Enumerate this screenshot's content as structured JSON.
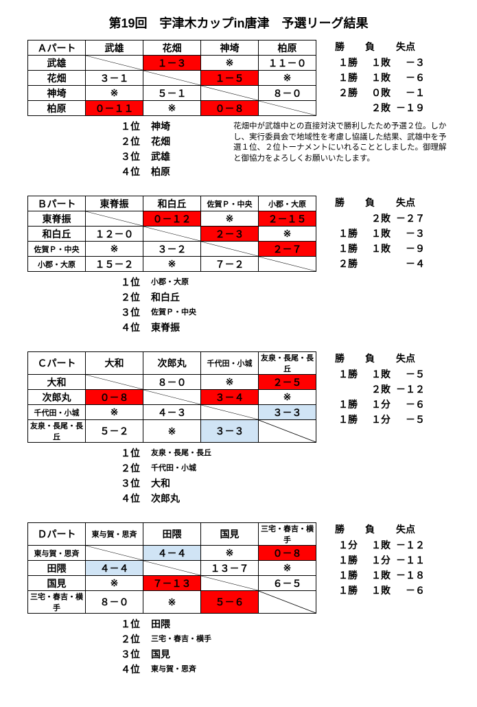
{
  "title": "第19回　宇津木カップin唐津　予選リーグ結果",
  "stats_header": {
    "win": "勝",
    "lose": "負",
    "pts": "失点"
  },
  "note": "花畑中が武雄中との直接対決で勝利したため予選２位。しかし、実行委員会で地域性を考慮し協議した結果、武雄中を予選１位、２位トーナメントにいれることとしました。御理解と御協力をよろしくお願いいたします。",
  "groups": [
    {
      "label": "Ａパート",
      "teams": [
        "武雄",
        "花畑",
        "神埼",
        "柏原"
      ],
      "teams_small": [
        false,
        false,
        false,
        false
      ],
      "cells": [
        [
          "X",
          {
            "v": "１－３",
            "c": "red"
          },
          {
            "v": "※",
            "c": ""
          },
          {
            "v": "１１－０",
            "c": ""
          }
        ],
        [
          {
            "v": "３－１",
            "c": ""
          },
          "X",
          {
            "v": "１－５",
            "c": "red"
          },
          {
            "v": "※",
            "c": ""
          }
        ],
        [
          {
            "v": "※",
            "c": ""
          },
          {
            "v": "５－１",
            "c": ""
          },
          "X",
          {
            "v": "８－０",
            "c": ""
          }
        ],
        [
          {
            "v": "０－１１",
            "c": "red"
          },
          {
            "v": "※",
            "c": ""
          },
          {
            "v": "０－８",
            "c": "red"
          },
          "X"
        ]
      ],
      "stats": [
        {
          "win": "１勝",
          "lose": "１敗",
          "pts": "－３"
        },
        {
          "win": "１勝",
          "lose": "１敗",
          "pts": "－６"
        },
        {
          "win": "２勝",
          "lose": "０敗",
          "pts": "－１"
        },
        {
          "win": "",
          "lose": "２敗",
          "pts": "－１９"
        }
      ],
      "rank": [
        {
          "pos": "１位",
          "team": "神埼"
        },
        {
          "pos": "２位",
          "team": "花畑"
        },
        {
          "pos": "３位",
          "team": "武雄"
        },
        {
          "pos": "４位",
          "team": "柏原"
        }
      ],
      "rank_small": [
        false,
        false,
        false,
        false
      ],
      "has_note": true
    },
    {
      "label": "Ｂパート",
      "teams": [
        "東脊振",
        "和白丘",
        "佐賀Ｐ・中央",
        "小郡・大原"
      ],
      "teams_small": [
        false,
        false,
        true,
        true
      ],
      "cells": [
        [
          "X",
          {
            "v": "０－１２",
            "c": "red"
          },
          {
            "v": "※",
            "c": ""
          },
          {
            "v": "２－１５",
            "c": "red"
          }
        ],
        [
          {
            "v": "１２－０",
            "c": ""
          },
          "X",
          {
            "v": "２－３",
            "c": "red"
          },
          {
            "v": "※",
            "c": ""
          }
        ],
        [
          {
            "v": "※",
            "c": ""
          },
          {
            "v": "３－２",
            "c": ""
          },
          "X",
          {
            "v": "２－７",
            "c": "red"
          }
        ],
        [
          {
            "v": "１５－２",
            "c": ""
          },
          {
            "v": "※",
            "c": ""
          },
          {
            "v": "７－２",
            "c": ""
          },
          "X"
        ]
      ],
      "stats": [
        {
          "win": "",
          "lose": "２敗",
          "pts": "－２７"
        },
        {
          "win": "１勝",
          "lose": "１敗",
          "pts": "－３"
        },
        {
          "win": "１勝",
          "lose": "１敗",
          "pts": "－９"
        },
        {
          "win": "２勝",
          "lose": "",
          "pts": "－４"
        }
      ],
      "rank": [
        {
          "pos": "１位",
          "team": "小郡・大原"
        },
        {
          "pos": "２位",
          "team": "和白丘"
        },
        {
          "pos": "３位",
          "team": "佐賀Ｐ・中央"
        },
        {
          "pos": "４位",
          "team": "東脊振"
        }
      ],
      "rank_small": [
        true,
        false,
        true,
        false
      ],
      "has_note": false
    },
    {
      "label": "Ｃパート",
      "teams": [
        "大和",
        "次郎丸",
        "千代田・小城",
        "友泉・長尾・長丘"
      ],
      "teams_small": [
        false,
        false,
        true,
        true
      ],
      "cells": [
        [
          "X",
          {
            "v": "８－０",
            "c": ""
          },
          {
            "v": "※",
            "c": ""
          },
          {
            "v": "２－５",
            "c": "red"
          }
        ],
        [
          {
            "v": "０－８",
            "c": "red"
          },
          "X",
          {
            "v": "３－４",
            "c": "red"
          },
          {
            "v": "※",
            "c": ""
          }
        ],
        [
          {
            "v": "※",
            "c": ""
          },
          {
            "v": "４－３",
            "c": ""
          },
          "X",
          {
            "v": "３－３",
            "c": "blue"
          }
        ],
        [
          {
            "v": "５－２",
            "c": ""
          },
          {
            "v": "※",
            "c": ""
          },
          {
            "v": "３－３",
            "c": "blue"
          },
          "X"
        ]
      ],
      "stats": [
        {
          "win": "１勝",
          "lose": "１敗",
          "pts": "－５"
        },
        {
          "win": "",
          "lose": "２敗",
          "pts": "－１２"
        },
        {
          "win": "１勝",
          "lose": "１分",
          "pts": "－６"
        },
        {
          "win": "１勝",
          "lose": "１分",
          "pts": "－５"
        }
      ],
      "rank": [
        {
          "pos": "１位",
          "team": "友泉・長尾・長丘"
        },
        {
          "pos": "２位",
          "team": "千代田・小城"
        },
        {
          "pos": "３位",
          "team": "大和"
        },
        {
          "pos": "４位",
          "team": "次郎丸"
        }
      ],
      "rank_small": [
        true,
        true,
        false,
        false
      ],
      "has_note": false
    },
    {
      "label": "Ｄパート",
      "teams": [
        "東与賀・思斉",
        "田隈",
        "国見",
        "三宅・春吉・横手"
      ],
      "teams_small": [
        true,
        false,
        false,
        true
      ],
      "cells": [
        [
          "X",
          {
            "v": "４－４",
            "c": "blue"
          },
          {
            "v": "※",
            "c": ""
          },
          {
            "v": "０－８",
            "c": "red"
          }
        ],
        [
          {
            "v": "４－４",
            "c": "blue"
          },
          "X",
          {
            "v": "１３－７",
            "c": ""
          },
          {
            "v": "※",
            "c": ""
          }
        ],
        [
          {
            "v": "※",
            "c": ""
          },
          {
            "v": "７－１３",
            "c": "red"
          },
          "X",
          {
            "v": "６－５",
            "c": ""
          }
        ],
        [
          {
            "v": "８－０",
            "c": ""
          },
          {
            "v": "※",
            "c": ""
          },
          {
            "v": "５－６",
            "c": "red"
          },
          "X"
        ]
      ],
      "stats": [
        {
          "win": "１分",
          "lose": "１敗",
          "pts": "－１２"
        },
        {
          "win": "１勝",
          "lose": "１分",
          "pts": "－１１"
        },
        {
          "win": "１勝",
          "lose": "１敗",
          "pts": "－１８"
        },
        {
          "win": "１勝",
          "lose": "１敗",
          "pts": "－６"
        }
      ],
      "rank": [
        {
          "pos": "１位",
          "team": "田隈"
        },
        {
          "pos": "２位",
          "team": "三宅・春吉・横手"
        },
        {
          "pos": "３位",
          "team": "国見"
        },
        {
          "pos": "４位",
          "team": "東与賀・思斉"
        }
      ],
      "rank_small": [
        false,
        true,
        false,
        true
      ],
      "has_note": false
    }
  ]
}
